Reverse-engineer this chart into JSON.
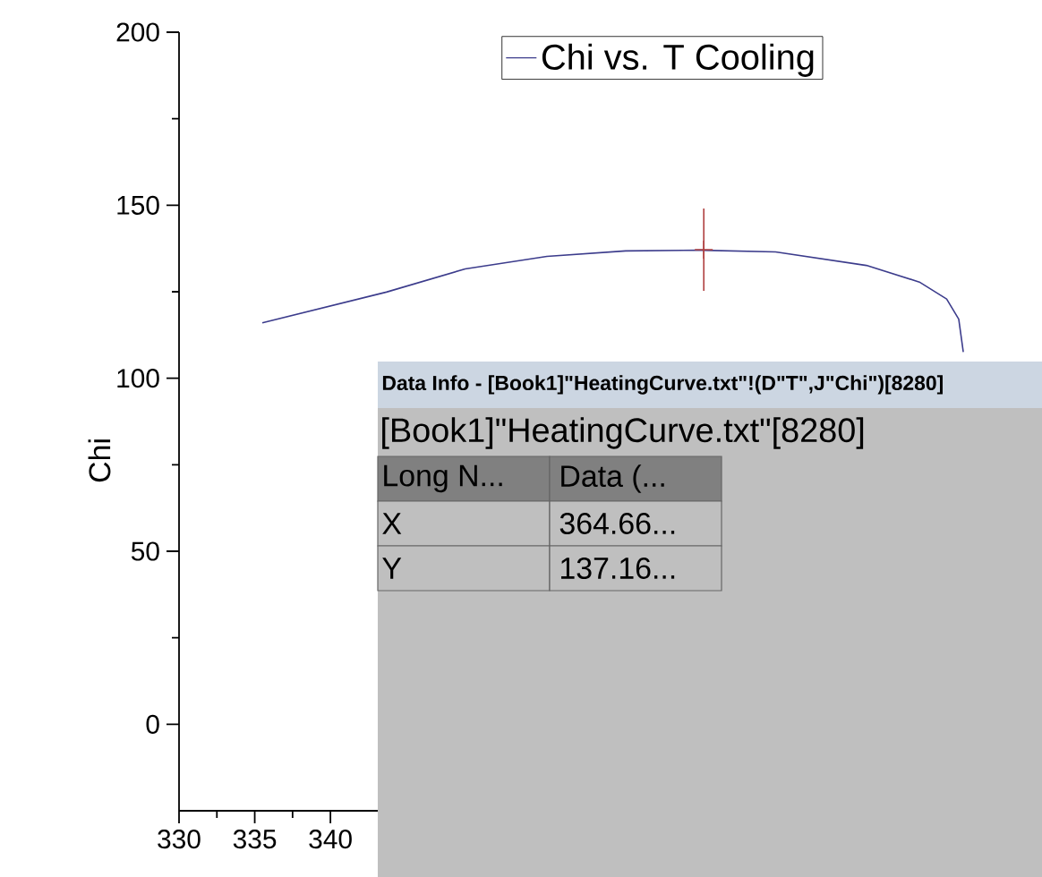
{
  "chart_data": {
    "type": "line",
    "ylabel": "Chi",
    "xlim": [
      330,
      387
    ],
    "ylim": [
      -25,
      200
    ],
    "xticks": [
      330,
      335,
      340
    ],
    "yticks": [
      0,
      50,
      100,
      150,
      200
    ],
    "legend": "top",
    "grid": false,
    "series": [
      {
        "name": "Chi vs. T Cooling",
        "color": "#3c3c8c",
        "x": [
          335.5,
          343.7,
          348.9,
          354.3,
          359.5,
          364.5,
          369.4,
          375.4,
          378.9,
          380.7,
          381.5,
          381.8
        ],
        "values": [
          116,
          124.9,
          131.6,
          135.2,
          136.8,
          137,
          136.5,
          132.6,
          127.8,
          122.9,
          117.1,
          107.6
        ]
      },
      {
        "type": "scatter",
        "marker": "cross",
        "color": "#b04040",
        "x": [
          364.66
        ],
        "values": [
          137.16
        ]
      }
    ],
    "annotations": [
      "Data Info - [Book1]\"HeatingCurve.txt\"!(D\"T\",J\"Chi\")[8280]",
      "[Book1]\"HeatingCurve.txt\"[8280]",
      "Long N...",
      "Data (...",
      "X",
      "364.66...",
      "Y",
      "137.16..."
    ]
  }
}
